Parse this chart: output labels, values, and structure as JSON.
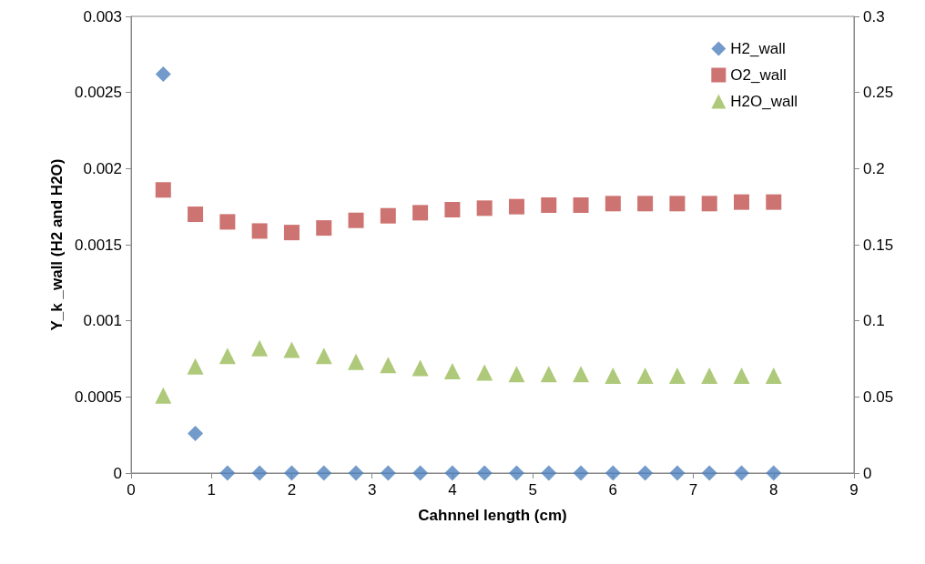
{
  "chart_data": {
    "type": "scatter",
    "xlabel": "Cahnnel length (cm)",
    "ylabel": "Y_k _wall (H2 and H2O)",
    "x": [
      0.4,
      0.8,
      1.2,
      1.6,
      2.0,
      2.4,
      2.8,
      3.2,
      3.6,
      4.0,
      4.4,
      4.8,
      5.2,
      5.6,
      6.0,
      6.4,
      6.8,
      7.2,
      7.6,
      8.0
    ],
    "series": [
      {
        "name": "H2_wall",
        "color": "#4f81bd",
        "marker": "diamond",
        "values": [
          0.00262,
          0.00026,
          0,
          0,
          0,
          0,
          0,
          0,
          0,
          0,
          0,
          0,
          0,
          0,
          0,
          0,
          0,
          0,
          0,
          0
        ]
      },
      {
        "name": "O2_wall",
        "color": "#c0504d",
        "marker": "square",
        "axis": "y2",
        "values": [
          0.186,
          0.17,
          0.165,
          0.159,
          0.158,
          0.161,
          0.166,
          0.169,
          0.171,
          0.173,
          0.174,
          0.175,
          0.176,
          0.176,
          0.177,
          0.177,
          0.177,
          0.177,
          0.178,
          0.178
        ]
      },
      {
        "name": "H2O_wall",
        "color": "#9bbb59",
        "marker": "triangle",
        "values": [
          0.00051,
          0.0007,
          0.00077,
          0.00082,
          0.00081,
          0.00077,
          0.00073,
          0.00071,
          0.00069,
          0.00067,
          0.00066,
          0.00065,
          0.00065,
          0.00065,
          0.00064,
          0.00064,
          0.00064,
          0.00064,
          0.00064,
          0.00064
        ]
      }
    ],
    "xlim": [
      0,
      9
    ],
    "xticks": [
      0,
      1,
      2,
      3,
      4,
      5,
      6,
      7,
      8,
      9
    ],
    "ylim": [
      0,
      0.003
    ],
    "yticks": [
      0,
      0.0005,
      0.001,
      0.0015,
      0.002,
      0.0025,
      0.003
    ],
    "y2lim": [
      0,
      0.3
    ],
    "y2ticks": [
      0,
      0.05,
      0.1,
      0.15,
      0.2,
      0.25,
      0.3
    ],
    "grid": false,
    "legend": "top right"
  }
}
